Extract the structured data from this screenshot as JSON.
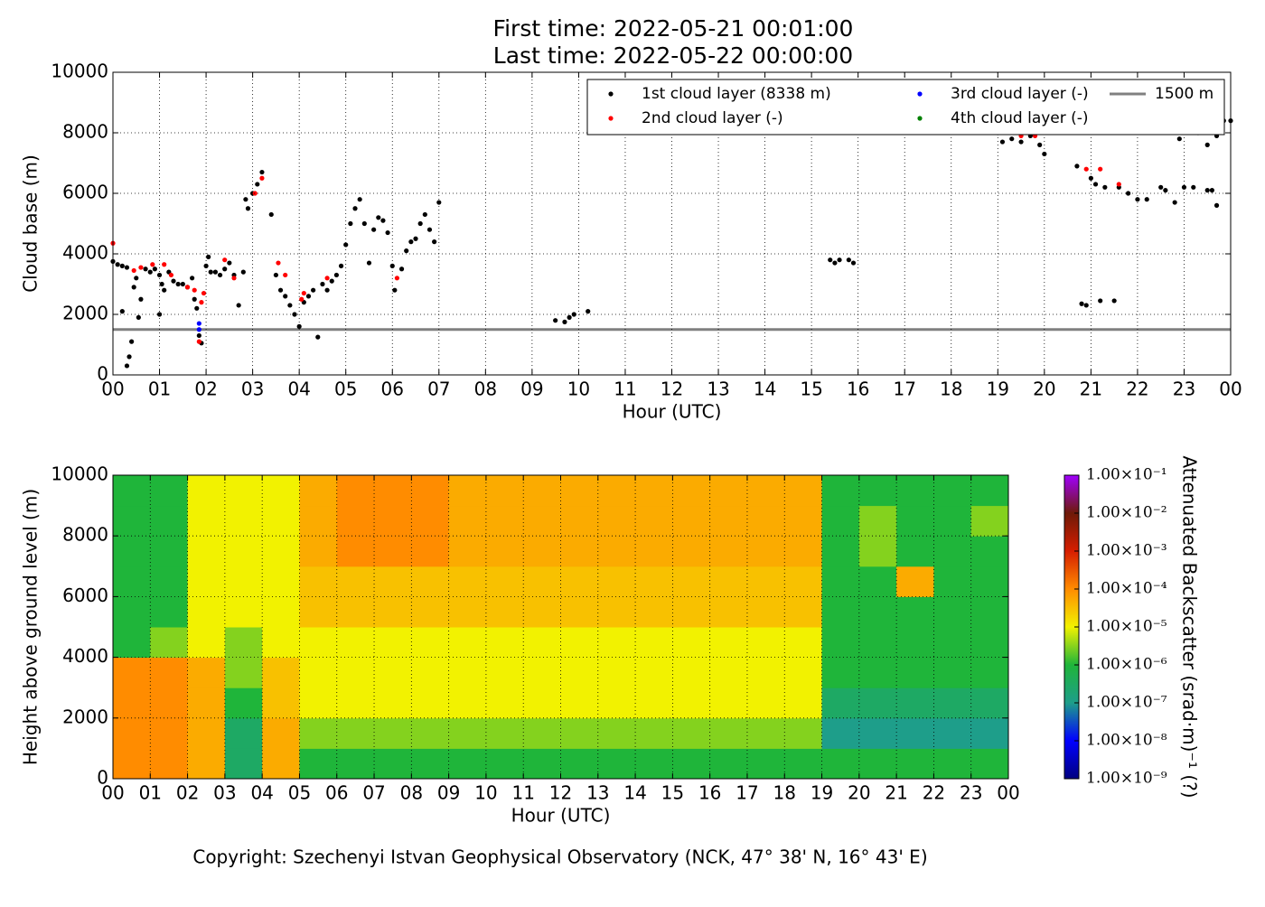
{
  "header": {
    "lines": [
      "First time: 2022-05-21 00:01:00",
      "Last time: 2022-05-22 00:00:00"
    ]
  },
  "footer": {
    "copyright": "Copyright: Szechenyi Istvan Geophysical Observatory (NCK, 47° 38' N, 16° 43' E)"
  },
  "chart_data": [
    {
      "type": "scatter",
      "xlabel": "Hour (UTC)",
      "ylabel": "Cloud base (m)",
      "xlim": [
        0,
        24
      ],
      "ylim": [
        0,
        10000
      ],
      "xticks": [
        {
          "value": 0,
          "label": "00"
        },
        {
          "value": 1,
          "label": "01"
        },
        {
          "value": 2,
          "label": "02"
        },
        {
          "value": 3,
          "label": "03"
        },
        {
          "value": 4,
          "label": "04"
        },
        {
          "value": 5,
          "label": "05"
        },
        {
          "value": 6,
          "label": "06"
        },
        {
          "value": 7,
          "label": "07"
        },
        {
          "value": 8,
          "label": "08"
        },
        {
          "value": 9,
          "label": "09"
        },
        {
          "value": 10,
          "label": "10"
        },
        {
          "value": 11,
          "label": "11"
        },
        {
          "value": 12,
          "label": "12"
        },
        {
          "value": 13,
          "label": "13"
        },
        {
          "value": 14,
          "label": "14"
        },
        {
          "value": 15,
          "label": "15"
        },
        {
          "value": 16,
          "label": "16"
        },
        {
          "value": 17,
          "label": "17"
        },
        {
          "value": 18,
          "label": "18"
        },
        {
          "value": 19,
          "label": "19"
        },
        {
          "value": 20,
          "label": "20"
        },
        {
          "value": 21,
          "label": "21"
        },
        {
          "value": 22,
          "label": "22"
        },
        {
          "value": 23,
          "label": "23"
        },
        {
          "value": 24,
          "label": "00"
        }
      ],
      "yticks": [
        0,
        2000,
        4000,
        6000,
        8000,
        10000
      ],
      "grid": true,
      "legend": "upper right",
      "series": [
        {
          "name": "1st cloud layer (8338 m)",
          "color": "#000000",
          "x": [
            0.0,
            0.1,
            0.2,
            0.3,
            0.2,
            0.3,
            0.35,
            0.4,
            0.45,
            0.5,
            0.55,
            0.6,
            0.7,
            0.8,
            0.9,
            1.0,
            1.05,
            1.1,
            1.0,
            1.2,
            1.3,
            1.4,
            1.5,
            1.6,
            1.7,
            1.75,
            1.8,
            1.85,
            1.9,
            2.0,
            2.05,
            2.1,
            2.2,
            2.3,
            2.4,
            2.5,
            2.6,
            2.7,
            2.8,
            2.85,
            2.9,
            3.0,
            3.1,
            3.2,
            3.4,
            3.5,
            3.6,
            3.7,
            3.8,
            3.9,
            4.0,
            4.1,
            4.2,
            4.3,
            4.4,
            4.5,
            4.6,
            4.7,
            4.8,
            4.9,
            5.0,
            5.1,
            5.2,
            5.3,
            5.4,
            5.5,
            5.6,
            5.7,
            5.8,
            5.9,
            6.0,
            6.05,
            6.2,
            6.3,
            6.4,
            6.5,
            6.6,
            6.7,
            6.8,
            6.9,
            7.0,
            9.5,
            9.7,
            9.8,
            9.9,
            10.2,
            15.4,
            15.5,
            15.6,
            15.8,
            15.9,
            19.0,
            19.1,
            19.3,
            19.5,
            19.7,
            19.9,
            20.0,
            20.7,
            20.8,
            20.9,
            21.0,
            21.1,
            21.2,
            21.3,
            21.5,
            21.6,
            21.8,
            22.0,
            22.2,
            22.5,
            22.6,
            22.8,
            23.0,
            23.2,
            23.5,
            23.6,
            23.7,
            22.9,
            23.1,
            23.3,
            23.5,
            23.7,
            23.85,
            24.0
          ],
          "values": [
            3750,
            3650,
            3600,
            3550,
            2100,
            300,
            600,
            1100,
            2900,
            3200,
            1900,
            2500,
            3500,
            3400,
            3500,
            3300,
            3000,
            2800,
            2000,
            3400,
            3100,
            3000,
            3000,
            2900,
            3200,
            2500,
            2200,
            1300,
            1050,
            3600,
            3900,
            3400,
            3400,
            3300,
            3500,
            3700,
            3300,
            2300,
            3400,
            5800,
            5500,
            6000,
            6300,
            6700,
            5300,
            3300,
            2800,
            2600,
            2300,
            2000,
            1600,
            2400,
            2600,
            2800,
            1250,
            3000,
            2800,
            3100,
            3300,
            3600,
            4300,
            5000,
            5500,
            5800,
            5000,
            3700,
            4800,
            5200,
            5100,
            4700,
            3600,
            2800,
            3500,
            4100,
            4400,
            4500,
            5000,
            5300,
            4800,
            4400,
            5700,
            1800,
            1750,
            1900,
            2000,
            2100,
            3800,
            3700,
            3800,
            3800,
            3700,
            8000,
            7700,
            7800,
            7700,
            7900,
            7600,
            7300,
            6900,
            2350,
            2300,
            6500,
            6300,
            2450,
            6200,
            2450,
            6200,
            6000,
            5800,
            5800,
            6200,
            6100,
            5700,
            6200,
            6200,
            6100,
            6100,
            5600,
            7800,
            8400,
            8000,
            7600,
            7900,
            8400,
            8400
          ]
        },
        {
          "name": "2nd cloud layer (-)",
          "color": "#ff0000",
          "x": [
            0.0,
            0.45,
            0.6,
            0.85,
            1.1,
            1.25,
            1.6,
            1.75,
            1.85,
            1.9,
            1.95,
            2.4,
            2.6,
            3.05,
            3.2,
            3.55,
            3.7,
            4.05,
            4.1,
            4.6,
            6.1,
            19.5,
            19.8,
            20.9,
            21.2,
            21.6
          ],
          "values": [
            4350,
            3450,
            3550,
            3650,
            3650,
            3300,
            2900,
            2800,
            1100,
            2400,
            2700,
            3800,
            3200,
            6000,
            6500,
            3700,
            3300,
            2500,
            2700,
            3200,
            3200,
            7900,
            7900,
            6800,
            6800,
            6300
          ]
        },
        {
          "name": "3rd cloud layer (-)",
          "color": "#0000ff",
          "x": [
            1.85,
            1.85
          ],
          "values": [
            1700,
            1500
          ]
        },
        {
          "name": "4th cloud layer (-)",
          "color": "#008000",
          "x": [],
          "values": []
        }
      ],
      "hlines": [
        {
          "name": "1500 m",
          "value": 1500,
          "color": "#808080"
        }
      ]
    },
    {
      "type": "heatmap",
      "xlabel": "Hour (UTC)",
      "ylabel": "Height above ground level (m)",
      "xlim": [
        0,
        24
      ],
      "ylim": [
        0,
        10000
      ],
      "xticks": [
        {
          "value": 0,
          "label": "00"
        },
        {
          "value": 1,
          "label": "01"
        },
        {
          "value": 2,
          "label": "02"
        },
        {
          "value": 3,
          "label": "03"
        },
        {
          "value": 4,
          "label": "04"
        },
        {
          "value": 5,
          "label": "05"
        },
        {
          "value": 6,
          "label": "06"
        },
        {
          "value": 7,
          "label": "07"
        },
        {
          "value": 8,
          "label": "08"
        },
        {
          "value": 9,
          "label": "09"
        },
        {
          "value": 10,
          "label": "10"
        },
        {
          "value": 11,
          "label": "11"
        },
        {
          "value": 12,
          "label": "12"
        },
        {
          "value": 13,
          "label": "13"
        },
        {
          "value": 14,
          "label": "14"
        },
        {
          "value": 15,
          "label": "15"
        },
        {
          "value": 16,
          "label": "16"
        },
        {
          "value": 17,
          "label": "17"
        },
        {
          "value": 18,
          "label": "18"
        },
        {
          "value": 19,
          "label": "19"
        },
        {
          "value": 20,
          "label": "20"
        },
        {
          "value": 21,
          "label": "21"
        },
        {
          "value": 22,
          "label": "22"
        },
        {
          "value": 23,
          "label": "23"
        },
        {
          "value": 24,
          "label": "00"
        }
      ],
      "yticks": [
        0,
        2000,
        4000,
        6000,
        8000,
        10000
      ],
      "grid": true,
      "xbins": [
        0,
        1,
        2,
        3,
        4,
        5,
        6,
        7,
        8,
        9,
        10,
        11,
        12,
        13,
        14,
        15,
        16,
        17,
        18,
        19,
        20,
        21,
        22,
        23,
        24
      ],
      "ybins": [
        0,
        1000,
        2000,
        3000,
        4000,
        5000,
        6000,
        7000,
        8000,
        9000,
        10000
      ],
      "values": [
        [
          0.0001,
          0.0001,
          5e-05,
          3e-07,
          5e-05,
          1e-06,
          1e-06,
          1e-06,
          1e-06,
          1e-06,
          1e-06,
          1e-06,
          1e-06,
          1e-06,
          1e-06,
          1e-06,
          1e-06,
          1e-06,
          1e-06,
          1e-06,
          1e-06,
          1e-06,
          1e-06,
          1e-06
        ],
        [
          0.0001,
          0.0001,
          5e-05,
          3e-07,
          5e-05,
          3e-06,
          3e-06,
          3e-06,
          3e-06,
          3e-06,
          3e-06,
          3e-06,
          3e-06,
          3e-06,
          3e-06,
          3e-06,
          3e-06,
          3e-06,
          3e-06,
          1e-07,
          1e-07,
          1e-07,
          1e-07,
          1e-07
        ],
        [
          0.0001,
          0.0001,
          5e-05,
          1e-06,
          3e-05,
          1e-05,
          1e-05,
          1e-05,
          1e-05,
          1e-05,
          1e-05,
          1e-05,
          1e-05,
          1e-05,
          1e-05,
          1e-05,
          1e-05,
          1e-05,
          1e-05,
          3e-07,
          3e-07,
          3e-07,
          3e-07,
          3e-07
        ],
        [
          0.0001,
          0.0001,
          5e-05,
          3e-06,
          3e-05,
          1e-05,
          1e-05,
          1e-05,
          1e-05,
          1e-05,
          1e-05,
          1e-05,
          1e-05,
          1e-05,
          1e-05,
          1e-05,
          1e-05,
          1e-05,
          1e-05,
          1e-06,
          1e-06,
          1e-06,
          1e-06,
          1e-06
        ],
        [
          1e-06,
          3e-06,
          1e-05,
          3e-06,
          1e-05,
          1e-05,
          1e-05,
          1e-05,
          1e-05,
          1e-05,
          1e-05,
          1e-05,
          1e-05,
          1e-05,
          1e-05,
          1e-05,
          1e-05,
          1e-05,
          1e-05,
          1e-06,
          1e-06,
          1e-06,
          1e-06,
          1e-06
        ],
        [
          1e-06,
          1e-06,
          1e-05,
          1e-05,
          1e-05,
          3e-05,
          3e-05,
          3e-05,
          3e-05,
          3e-05,
          3e-05,
          3e-05,
          3e-05,
          3e-05,
          3e-05,
          3e-05,
          3e-05,
          3e-05,
          3e-05,
          1e-06,
          1e-06,
          1e-06,
          1e-06,
          1e-06
        ],
        [
          1e-06,
          1e-06,
          1e-05,
          1e-05,
          1e-05,
          3e-05,
          3e-05,
          3e-05,
          3e-05,
          3e-05,
          3e-05,
          3e-05,
          3e-05,
          3e-05,
          3e-05,
          3e-05,
          3e-05,
          3e-05,
          3e-05,
          1e-06,
          1e-06,
          5e-05,
          1e-06,
          1e-06
        ],
        [
          1e-06,
          1e-06,
          1e-05,
          1e-05,
          1e-05,
          5e-05,
          0.0001,
          0.0001,
          0.0001,
          5e-05,
          5e-05,
          5e-05,
          5e-05,
          5e-05,
          5e-05,
          5e-05,
          5e-05,
          5e-05,
          5e-05,
          1e-06,
          3e-06,
          1e-06,
          1e-06,
          1e-06
        ],
        [
          1e-06,
          1e-06,
          1e-05,
          1e-05,
          1e-05,
          5e-05,
          0.0001,
          0.0001,
          0.0001,
          5e-05,
          5e-05,
          5e-05,
          5e-05,
          5e-05,
          5e-05,
          5e-05,
          5e-05,
          5e-05,
          5e-05,
          1e-06,
          3e-06,
          1e-06,
          1e-06,
          3e-06
        ],
        [
          1e-06,
          1e-06,
          1e-05,
          1e-05,
          1e-05,
          5e-05,
          0.0001,
          0.0001,
          0.0001,
          5e-05,
          5e-05,
          5e-05,
          5e-05,
          5e-05,
          5e-05,
          5e-05,
          5e-05,
          5e-05,
          5e-05,
          1e-06,
          1e-06,
          1e-06,
          1e-06,
          1e-06
        ]
      ],
      "colorbar": {
        "label": "Attenuated Backscatter (srad·m)⁻¹ (?)",
        "scale": "log",
        "lim": [
          1e-09,
          0.1
        ],
        "ticks": [
          {
            "value": 1e-09,
            "label": "1.00×10⁻⁹"
          },
          {
            "value": 1e-08,
            "label": "1.00×10⁻⁸"
          },
          {
            "value": 1e-07,
            "label": "1.00×10⁻⁷"
          },
          {
            "value": 1e-06,
            "label": "1.00×10⁻⁶"
          },
          {
            "value": 1e-05,
            "label": "1.00×10⁻⁵"
          },
          {
            "value": 0.0001,
            "label": "1.00×10⁻⁴"
          },
          {
            "value": 0.001,
            "label": "1.00×10⁻³"
          },
          {
            "value": 0.01,
            "label": "1.00×10⁻²"
          },
          {
            "value": 0.1,
            "label": "1.00×10⁻¹"
          }
        ],
        "colors": [
          "#000080",
          "#0000ff",
          "#1e9e8a",
          "#1fb53a",
          "#f2f200",
          "#ff8c00",
          "#d61e00",
          "#6e1a08",
          "#a000ff"
        ]
      }
    }
  ]
}
